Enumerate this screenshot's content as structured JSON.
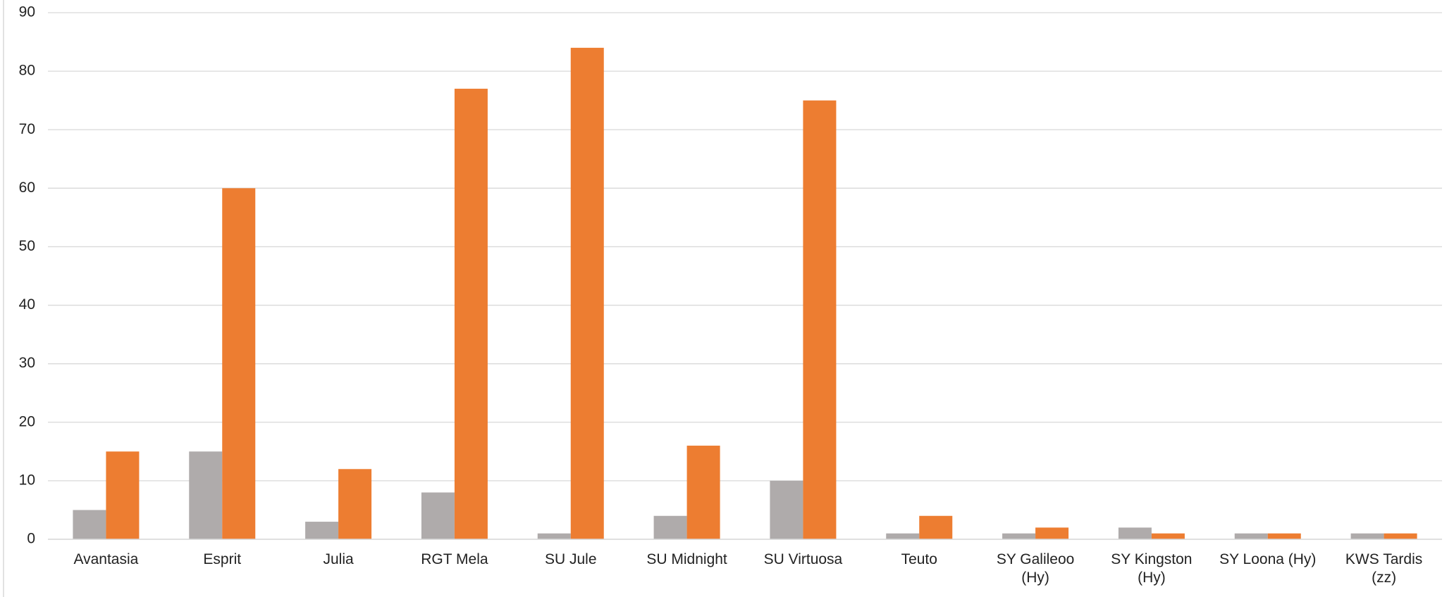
{
  "chart_data": {
    "type": "bar",
    "categories": [
      "Avantasia",
      "Esprit",
      "Julia",
      "RGT Mela",
      "SU Jule",
      "SU Midnight",
      "SU Virtuosa",
      "Teuto",
      "SY Galileoo (Hy)",
      "SY Kingston (Hy)",
      "SY Loona (Hy)",
      "KWS Tardis (zz)"
    ],
    "series": [
      {
        "color": "#afabab",
        "values": [
          5,
          15,
          3,
          8,
          1,
          4,
          10,
          1,
          1,
          2,
          1,
          1
        ]
      },
      {
        "color": "#ed7d31",
        "values": [
          15,
          60,
          12,
          77,
          84,
          16,
          75,
          4,
          2,
          1,
          1,
          1
        ]
      }
    ],
    "ylim": [
      0,
      90
    ],
    "yticks": [
      0,
      10,
      20,
      30,
      40,
      50,
      60,
      70,
      80,
      90
    ],
    "grid": true
  }
}
